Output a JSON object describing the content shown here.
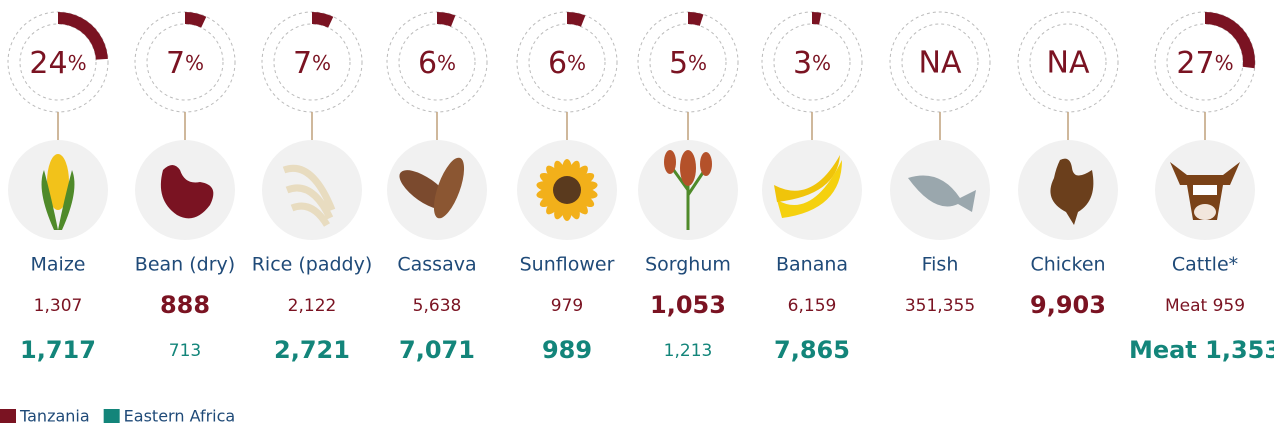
{
  "items": [
    {
      "name": "Maize",
      "share": 24,
      "tanzania": "1,307",
      "eastern_africa": "1,717",
      "highlight": "eastern_africa"
    },
    {
      "name": "Bean (dry)",
      "share": 7,
      "tanzania": "888",
      "eastern_africa": "713",
      "highlight": "tanzania"
    },
    {
      "name": "Rice (paddy)",
      "share": 7,
      "tanzania": "2,122",
      "eastern_africa": "2,721",
      "highlight": "eastern_africa"
    },
    {
      "name": "Cassava",
      "share": 6,
      "tanzania": "5,638",
      "eastern_africa": "7,071",
      "highlight": "eastern_africa"
    },
    {
      "name": "Sunflower",
      "share": 6,
      "tanzania": "979",
      "eastern_africa": "989",
      "highlight": "eastern_africa"
    },
    {
      "name": "Sorghum",
      "share": 5,
      "tanzania": "1,053",
      "eastern_africa": "1,213",
      "highlight": "tanzania"
    },
    {
      "name": "Banana",
      "share": 3,
      "tanzania": "6,159",
      "eastern_africa": "7,865",
      "highlight": "eastern_africa"
    },
    {
      "name": "Fish",
      "share": "NA",
      "tanzania": "351,355"
    },
    {
      "name": "Chicken",
      "share": "NA",
      "tanzania": "9,903",
      "highlight": "tanzania"
    },
    {
      "name": "Cattle*",
      "share": 27,
      "tanzania": "Meat 959",
      "eastern_africa": "Meat 1,353",
      "highlight": "eastern_africa"
    }
  ],
  "unit": "%",
  "colors": {
    "tanzania": "#7a1322",
    "eastern_africa": "#13857a"
  },
  "legend": [
    {
      "key": "tanzania",
      "label": "Tanzania"
    },
    {
      "key": "eastern_africa",
      "label": "Eastern Africa"
    }
  ]
}
